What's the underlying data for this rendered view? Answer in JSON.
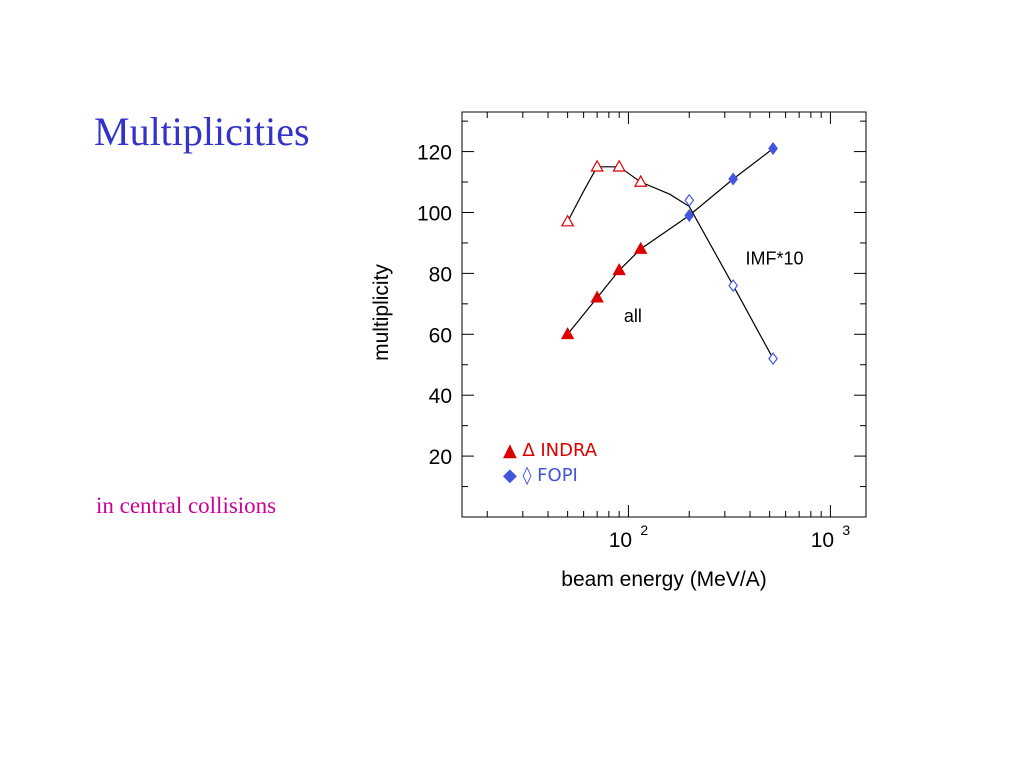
{
  "slide": {
    "title": "Multiplicities",
    "note": "in central collisions",
    "title_color": "#3333cc",
    "note_color": "#cc0099"
  },
  "chart_data": {
    "type": "scatter",
    "xlabel": "beam energy (MeV/A)",
    "ylabel": "multiplicity",
    "xscale": "log",
    "xlim": [
      15,
      1500
    ],
    "ylim": [
      0,
      133
    ],
    "xticks": [
      {
        "value": 100,
        "base": "10",
        "exp": "2"
      },
      {
        "value": 1000,
        "base": "10",
        "exp": "3"
      }
    ],
    "yticks": [
      20,
      40,
      60,
      80,
      100,
      120
    ],
    "grid": false,
    "series": [
      {
        "name": "all",
        "color": "#dd0000",
        "marker": "triangle-filled",
        "points": [
          {
            "x": 50,
            "y": 60
          },
          {
            "x": 70,
            "y": 72
          },
          {
            "x": 90,
            "y": 81
          },
          {
            "x": 115,
            "y": 88
          }
        ]
      },
      {
        "name": "all",
        "color": "#4455dd",
        "marker": "diamond-filled",
        "points": [
          {
            "x": 200,
            "y": 99
          },
          {
            "x": 330,
            "y": 111
          },
          {
            "x": 520,
            "y": 121
          }
        ]
      },
      {
        "name": "IMF*10",
        "color": "#dd0000",
        "marker": "triangle-open",
        "points": [
          {
            "x": 50,
            "y": 97
          },
          {
            "x": 70,
            "y": 115
          },
          {
            "x": 90,
            "y": 115
          },
          {
            "x": 115,
            "y": 110
          }
        ]
      },
      {
        "name": "IMF*10",
        "color": "#4455dd",
        "marker": "diamond-open",
        "points": [
          {
            "x": 200,
            "y": 104
          },
          {
            "x": 330,
            "y": 76
          },
          {
            "x": 520,
            "y": 52
          }
        ]
      }
    ],
    "curves": [
      {
        "name": "all",
        "points": [
          [
            50,
            60
          ],
          [
            70,
            72
          ],
          [
            90,
            81
          ],
          [
            115,
            88
          ],
          [
            200,
            99
          ],
          [
            330,
            111
          ],
          [
            520,
            121
          ]
        ]
      },
      {
        "name": "IMF*10",
        "points": [
          [
            50,
            97
          ],
          [
            60,
            107
          ],
          [
            70,
            115
          ],
          [
            90,
            115
          ],
          [
            115,
            110
          ],
          [
            160,
            106
          ],
          [
            200,
            102
          ],
          [
            330,
            76
          ],
          [
            520,
            52
          ]
        ]
      }
    ],
    "annotations": [
      {
        "text": "IMF*10",
        "x": 380,
        "y": 83
      },
      {
        "text": "all",
        "x": 95,
        "y": 64
      }
    ],
    "legend": {
      "placement": "bottom-left",
      "entries": [
        {
          "symbols": "▲ ∆",
          "label": "INDRA",
          "color": "#dd0000"
        },
        {
          "symbols": "◆ ◊",
          "label": "FOPI",
          "color": "#4455dd"
        }
      ]
    }
  }
}
